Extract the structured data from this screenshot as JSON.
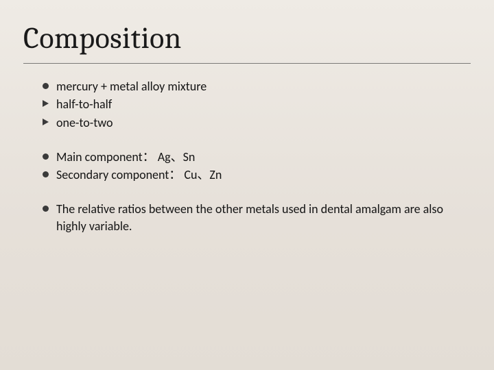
{
  "title": "Composition",
  "colors": {
    "background_top": "#efebe5",
    "background_bottom": "#e3ddd5",
    "text": "#1a1a1a",
    "bullet": "#3a3a3a",
    "rule": "rgba(30,30,30,0.55)"
  },
  "typography": {
    "title_family": "Cambria, Times New Roman, serif",
    "title_size_pt": 33,
    "body_family": "Calibri, Segoe UI, sans-serif",
    "body_size_pt": 14
  },
  "groups": [
    {
      "lines": [
        {
          "bullet": "dot",
          "text": "mercury  + metal alloy mixture"
        },
        {
          "bullet": "arrow",
          "text": "half-to-half"
        },
        {
          "bullet": "arrow",
          "text": "one-to-two"
        }
      ]
    },
    {
      "lines": [
        {
          "bullet": "dot",
          "text": "Main component： Ag、Sn"
        },
        {
          "bullet": "dot",
          "text": "Secondary component： Cu、Zn"
        }
      ]
    },
    {
      "lines": [
        {
          "bullet": "dot",
          "text": "The relative ratios between the other metals used in dental amalgam are also highly variable."
        }
      ]
    }
  ]
}
